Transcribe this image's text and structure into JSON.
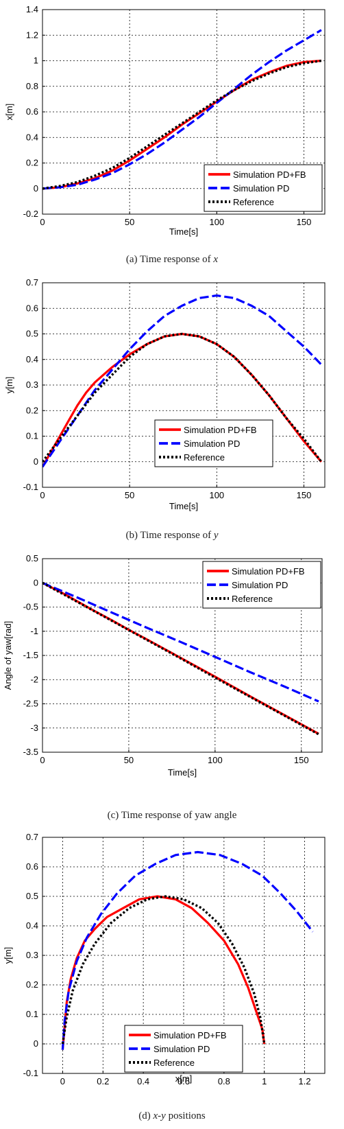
{
  "chart_data": [
    {
      "type": "line",
      "title": "",
      "caption_prefix": "(a) Time response of ",
      "caption_var": "x",
      "caption_suffix": "",
      "xlabel": "Time[s]",
      "ylabel": "x[m]",
      "xlim": [
        0,
        162
      ],
      "ylim": [
        -0.2,
        1.4
      ],
      "xticks": [
        0,
        50,
        100,
        150
      ],
      "yticks": [
        -0.2,
        0,
        0.2,
        0.4,
        0.6,
        0.8,
        1,
        1.2,
        1.4
      ],
      "ytick_labels": [
        "-0.2",
        "0",
        "0.2",
        "0.4",
        "0.6",
        "0.8",
        "1",
        "1.2",
        "1.4"
      ],
      "legend_position": "bottom-right",
      "grid": true,
      "series": [
        {
          "name": "Simulation PD+FB",
          "color": "#ff0000",
          "style": "solid",
          "x": [
            0,
            10,
            20,
            30,
            40,
            50,
            60,
            70,
            80,
            90,
            100,
            110,
            120,
            130,
            140,
            150,
            160
          ],
          "y": [
            0,
            0.01,
            0.04,
            0.08,
            0.14,
            0.22,
            0.31,
            0.4,
            0.5,
            0.59,
            0.68,
            0.77,
            0.85,
            0.91,
            0.96,
            0.99,
            1.0
          ]
        },
        {
          "name": "Simulation PD",
          "color": "#0000ff",
          "style": "dashed",
          "x": [
            0,
            10,
            20,
            30,
            40,
            50,
            60,
            70,
            80,
            90,
            100,
            110,
            120,
            130,
            140,
            150,
            160
          ],
          "y": [
            0,
            0.01,
            0.03,
            0.07,
            0.12,
            0.19,
            0.27,
            0.36,
            0.46,
            0.56,
            0.67,
            0.78,
            0.89,
            0.99,
            1.08,
            1.16,
            1.24
          ]
        },
        {
          "name": "Reference",
          "color": "#000000",
          "style": "dotted",
          "x": [
            0,
            10,
            20,
            30,
            40,
            50,
            60,
            70,
            80,
            90,
            100,
            110,
            120,
            130,
            140,
            150,
            160
          ],
          "y": [
            0,
            0.02,
            0.05,
            0.1,
            0.16,
            0.24,
            0.33,
            0.42,
            0.51,
            0.6,
            0.69,
            0.77,
            0.84,
            0.9,
            0.95,
            0.98,
            1.0
          ]
        }
      ]
    },
    {
      "type": "line",
      "title": "",
      "caption_prefix": "(b) Time response of ",
      "caption_var": "y",
      "caption_suffix": "",
      "xlabel": "Time[s]",
      "ylabel": "y[m]",
      "xlim": [
        0,
        162
      ],
      "ylim": [
        -0.1,
        0.7
      ],
      "xticks": [
        0,
        50,
        100,
        150
      ],
      "yticks": [
        -0.1,
        0,
        0.1,
        0.2,
        0.3,
        0.4,
        0.5,
        0.6,
        0.7
      ],
      "ytick_labels": [
        "-0.1",
        "0",
        "0.1",
        "0.2",
        "0.3",
        "0.4",
        "0.5",
        "0.6",
        "0.7"
      ],
      "legend_position": "bottom-center",
      "grid": true,
      "series": [
        {
          "name": "Simulation PD+FB",
          "color": "#ff0000",
          "style": "solid",
          "x": [
            0,
            5,
            10,
            15,
            20,
            25,
            30,
            35,
            40,
            50,
            60,
            70,
            80,
            90,
            100,
            110,
            120,
            130,
            140,
            150,
            160
          ],
          "y": [
            -0.02,
            0.04,
            0.1,
            0.16,
            0.22,
            0.27,
            0.31,
            0.34,
            0.37,
            0.42,
            0.46,
            0.49,
            0.5,
            0.49,
            0.46,
            0.41,
            0.34,
            0.26,
            0.17,
            0.08,
            0.0
          ]
        },
        {
          "name": "Simulation PD",
          "color": "#0000ff",
          "style": "dashed",
          "x": [
            0,
            10,
            20,
            30,
            40,
            50,
            60,
            70,
            80,
            90,
            100,
            110,
            120,
            130,
            140,
            150,
            160
          ],
          "y": [
            -0.02,
            0.08,
            0.18,
            0.28,
            0.36,
            0.44,
            0.51,
            0.57,
            0.61,
            0.64,
            0.65,
            0.64,
            0.61,
            0.57,
            0.51,
            0.45,
            0.38
          ]
        },
        {
          "name": "Reference",
          "color": "#000000",
          "style": "dotted",
          "x": [
            0,
            10,
            20,
            30,
            40,
            50,
            60,
            70,
            80,
            90,
            100,
            110,
            120,
            130,
            140,
            150,
            160
          ],
          "y": [
            0.0,
            0.09,
            0.18,
            0.27,
            0.34,
            0.41,
            0.46,
            0.49,
            0.5,
            0.49,
            0.46,
            0.41,
            0.34,
            0.26,
            0.17,
            0.09,
            0.0
          ]
        }
      ]
    },
    {
      "type": "line",
      "title": "",
      "caption_prefix": "(c) Time response of yaw angle",
      "caption_var": "",
      "caption_suffix": "",
      "xlabel": "Time[s]",
      "ylabel": "Angle of yaw[rad]",
      "xlim": [
        0,
        162
      ],
      "ylim": [
        -3.5,
        0.5
      ],
      "xticks": [
        0,
        50,
        100,
        150
      ],
      "yticks": [
        -3.5,
        -3,
        -2.5,
        -2,
        -1.5,
        -1,
        -0.5,
        0,
        0.5
      ],
      "ytick_labels": [
        "-3.5",
        "-3",
        "-2.5",
        "-2",
        "-1.5",
        "-1",
        "-0.5",
        "0",
        "0.5"
      ],
      "legend_position": "top-right",
      "grid": true,
      "series": [
        {
          "name": "Simulation PD+FB",
          "color": "#ff0000",
          "style": "solid",
          "x": [
            0,
            10,
            20,
            30,
            40,
            50,
            60,
            80,
            100,
            120,
            140,
            160
          ],
          "y": [
            0,
            -0.18,
            -0.38,
            -0.58,
            -0.77,
            -0.97,
            -1.16,
            -1.55,
            -1.94,
            -2.34,
            -2.73,
            -3.12
          ]
        },
        {
          "name": "Simulation PD",
          "color": "#0000ff",
          "style": "dashed",
          "x": [
            0,
            20,
            40,
            60,
            80,
            100,
            120,
            140,
            160
          ],
          "y": [
            0,
            -0.3,
            -0.61,
            -0.92,
            -1.22,
            -1.53,
            -1.84,
            -2.14,
            -2.45
          ]
        },
        {
          "name": "Reference",
          "color": "#000000",
          "style": "dotted",
          "x": [
            0,
            20,
            40,
            60,
            80,
            100,
            120,
            140,
            160
          ],
          "y": [
            0,
            -0.39,
            -0.78,
            -1.17,
            -1.56,
            -1.96,
            -2.35,
            -2.74,
            -3.13
          ]
        }
      ]
    },
    {
      "type": "line",
      "title": "",
      "caption_prefix": "(d) ",
      "caption_var": "x-y",
      "caption_suffix": " positions",
      "xlabel": "x[m]",
      "ylabel": "y[m]",
      "xlim": [
        -0.1,
        1.3
      ],
      "ylim": [
        -0.1,
        0.7
      ],
      "xticks": [
        0,
        0.2,
        0.4,
        0.6,
        0.8,
        1,
        1.2
      ],
      "xtick_labels": [
        "0",
        "0.2",
        "0.4",
        "0.6",
        "0.8",
        "1",
        "1.2"
      ],
      "yticks": [
        -0.1,
        0,
        0.1,
        0.2,
        0.3,
        0.4,
        0.5,
        0.6,
        0.7
      ],
      "ytick_labels": [
        "-0.1",
        "0",
        "0.1",
        "0.2",
        "0.3",
        "0.4",
        "0.5",
        "0.6",
        "0.7"
      ],
      "legend_position": "bottom-center",
      "grid": true,
      "series": [
        {
          "name": "Simulation PD+FB",
          "color": "#ff0000",
          "style": "solid",
          "x": [
            0.0,
            0.01,
            0.02,
            0.04,
            0.07,
            0.11,
            0.16,
            0.22,
            0.3,
            0.38,
            0.47,
            0.56,
            0.64,
            0.72,
            0.8,
            0.87,
            0.92,
            0.96,
            0.99,
            1.0
          ],
          "y": [
            -0.02,
            0.06,
            0.14,
            0.22,
            0.29,
            0.35,
            0.39,
            0.43,
            0.46,
            0.49,
            0.5,
            0.49,
            0.46,
            0.41,
            0.35,
            0.27,
            0.19,
            0.11,
            0.05,
            0.0
          ]
        },
        {
          "name": "Simulation PD",
          "color": "#0000ff",
          "style": "dashed",
          "x": [
            0.0,
            0.01,
            0.03,
            0.07,
            0.12,
            0.19,
            0.27,
            0.36,
            0.46,
            0.56,
            0.67,
            0.78,
            0.89,
            0.99,
            1.08,
            1.16,
            1.24
          ],
          "y": [
            -0.02,
            0.08,
            0.18,
            0.28,
            0.36,
            0.44,
            0.51,
            0.57,
            0.61,
            0.64,
            0.65,
            0.64,
            0.61,
            0.57,
            0.51,
            0.45,
            0.38
          ]
        },
        {
          "name": "Reference",
          "color": "#000000",
          "style": "dotted",
          "x": [
            0.0,
            0.02,
            0.05,
            0.1,
            0.16,
            0.24,
            0.33,
            0.42,
            0.51,
            0.6,
            0.69,
            0.77,
            0.84,
            0.9,
            0.95,
            0.98,
            1.0
          ],
          "y": [
            0.0,
            0.09,
            0.18,
            0.27,
            0.34,
            0.41,
            0.46,
            0.49,
            0.5,
            0.49,
            0.46,
            0.41,
            0.34,
            0.26,
            0.17,
            0.09,
            0.0
          ]
        }
      ]
    }
  ]
}
